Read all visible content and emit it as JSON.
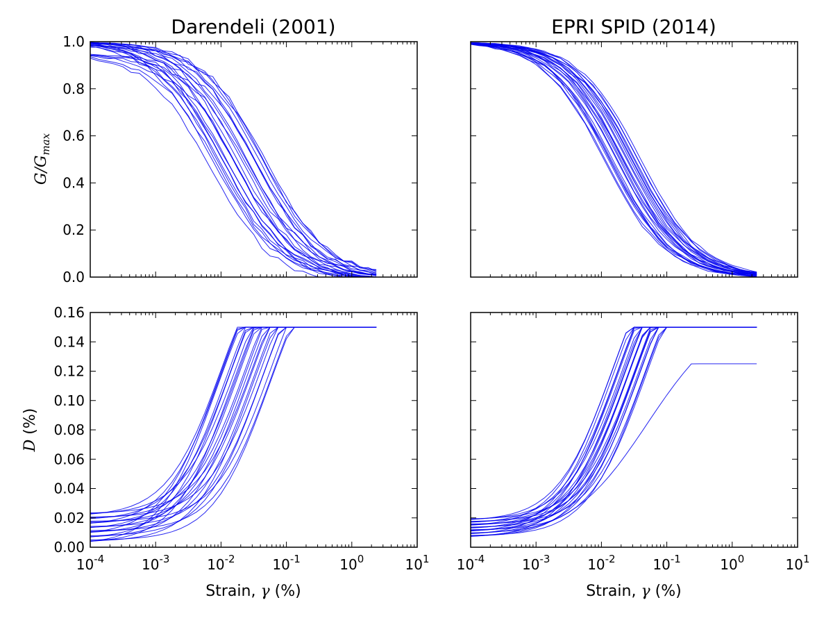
{
  "colors": {
    "curve": "#0000ee",
    "axes": "#000000"
  },
  "chart_data": [
    {
      "id": "darendeli-gmax",
      "type": "line",
      "title": "Darendeli (2001)",
      "xlabel": "",
      "ylabel": {
        "main": "G/G",
        "sub": "max"
      },
      "xscale": "log",
      "xlim": [
        0.0001,
        10
      ],
      "ylim": [
        0,
        1.0
      ],
      "yticks": [
        "0.0",
        "0.2",
        "0.4",
        "0.6",
        "0.8",
        "1.0"
      ],
      "show_yticklabels": true,
      "show_xticklabels": false,
      "curve_family": {
        "kind": "modulus",
        "count": 24,
        "x_max": 3.16,
        "gamma_ref": [
          0.007,
          0.05
        ],
        "curvature": [
          0.85,
          0.95
        ],
        "floor_drop": [
          0.0,
          0.07
        ]
      }
    },
    {
      "id": "epri-gmax",
      "type": "line",
      "title": "EPRI SPID (2014)",
      "xlabel": "",
      "ylabel": {
        "main": "",
        "sub": ""
      },
      "xscale": "log",
      "xlim": [
        0.0001,
        10
      ],
      "ylim": [
        0,
        1.0
      ],
      "yticks": [
        "0.0",
        "0.2",
        "0.4",
        "0.6",
        "0.8",
        "1.0"
      ],
      "show_yticklabels": false,
      "show_xticklabels": false,
      "curve_family": {
        "kind": "modulus",
        "count": 24,
        "x_max": 3.16,
        "gamma_ref": [
          0.011,
          0.04
        ],
        "curvature": [
          0.9,
          0.95
        ],
        "floor_drop": [
          0.0,
          0.02
        ]
      }
    },
    {
      "id": "darendeli-damping",
      "type": "line",
      "title": "",
      "xlabel": {
        "main": "Strain, ",
        "symbol": "γ",
        "unit": " (%)"
      },
      "ylabel": {
        "main": "D",
        "unit": " (%)"
      },
      "xscale": "log",
      "xlim": [
        0.0001,
        10
      ],
      "ylim": [
        0,
        0.16
      ],
      "yticks": [
        "0.00",
        "0.02",
        "0.04",
        "0.06",
        "0.08",
        "0.10",
        "0.12",
        "0.14",
        "0.16"
      ],
      "xticks": [
        {
          "base": "10",
          "exp": "-4"
        },
        {
          "base": "10",
          "exp": "-3"
        },
        {
          "base": "10",
          "exp": "-2"
        },
        {
          "base": "10",
          "exp": "-1"
        },
        {
          "base": "10",
          "exp": "0"
        },
        {
          "base": "10",
          "exp": "1"
        }
      ],
      "show_yticklabels": true,
      "show_xticklabels": true,
      "curve_family": {
        "kind": "damping",
        "count": 24,
        "x_max": 3.16,
        "d_min": [
          0.002,
          0.023
        ],
        "gamma_ref": [
          0.007,
          0.05
        ],
        "d_cap": 0.15
      }
    },
    {
      "id": "epri-damping",
      "type": "line",
      "title": "",
      "xlabel": {
        "main": "Strain, ",
        "symbol": "γ",
        "unit": " (%)"
      },
      "ylabel": {
        "main": "",
        "unit": ""
      },
      "xscale": "log",
      "xlim": [
        0.0001,
        10
      ],
      "ylim": [
        0,
        0.16
      ],
      "yticks": [
        "0.00",
        "0.02",
        "0.04",
        "0.06",
        "0.08",
        "0.10",
        "0.12",
        "0.14",
        "0.16"
      ],
      "xticks": [
        {
          "base": "10",
          "exp": "-4"
        },
        {
          "base": "10",
          "exp": "-3"
        },
        {
          "base": "10",
          "exp": "-2"
        },
        {
          "base": "10",
          "exp": "-1"
        },
        {
          "base": "10",
          "exp": "0"
        },
        {
          "base": "10",
          "exp": "1"
        }
      ],
      "show_yticklabels": false,
      "show_xticklabels": true,
      "curve_family": {
        "kind": "damping",
        "count": 24,
        "x_max": 3.16,
        "d_min": [
          0.006,
          0.019
        ],
        "gamma_ref": [
          0.011,
          0.04
        ],
        "d_cap": 0.15,
        "outlier_peak": 0.125
      }
    }
  ]
}
